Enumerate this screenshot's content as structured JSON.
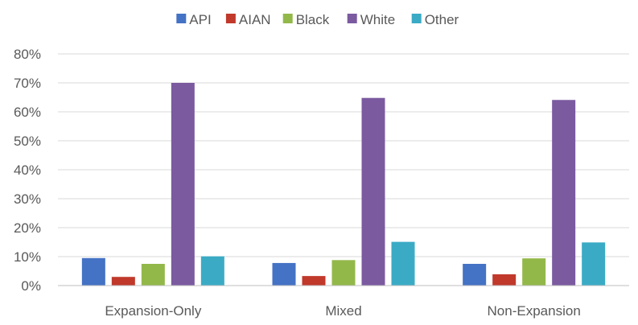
{
  "chart_data": {
    "type": "bar",
    "categories": [
      "Expansion-Only",
      "Mixed",
      "Non-Expansion"
    ],
    "series": [
      {
        "name": "API",
        "color": "#4472C4",
        "values": [
          9.5,
          7.8,
          7.5
        ]
      },
      {
        "name": "AIAN",
        "color": "#C0392B",
        "values": [
          3.0,
          3.3,
          3.9
        ]
      },
      {
        "name": "Black",
        "color": "#93B84A",
        "values": [
          7.5,
          8.8,
          9.4
        ]
      },
      {
        "name": "White",
        "color": "#7B5AA0",
        "values": [
          70.0,
          64.8,
          64.1
        ]
      },
      {
        "name": "Other",
        "color": "#3BABC5",
        "values": [
          10.1,
          15.1,
          14.9
        ]
      }
    ],
    "ylim": [
      0,
      80
    ],
    "yticks": [
      0,
      10,
      20,
      30,
      40,
      50,
      60,
      70,
      80
    ],
    "ytick_format": "percent",
    "legend_position": "top",
    "grid": true,
    "title": "",
    "xlabel": "",
    "ylabel": ""
  }
}
